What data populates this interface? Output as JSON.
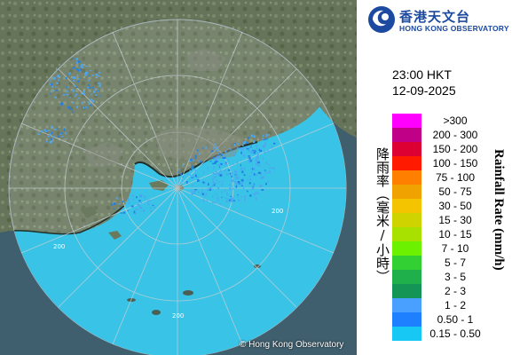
{
  "header": {
    "org_cn": "香港天文台",
    "org_en": "HONG KONG OBSERVATORY"
  },
  "timestamp": {
    "time": "23:00 HKT",
    "date": "12-09-2025"
  },
  "legend": {
    "title_cn": "降雨率（毫米/小時）",
    "title_en": "Rainfall Rate (mm/h)",
    "items": [
      {
        "label": ">300",
        "color": "#ff00ff"
      },
      {
        "label": "200 - 300",
        "color": "#c00087"
      },
      {
        "label": "150 - 200",
        "color": "#dd0033"
      },
      {
        "label": "100 - 150",
        "color": "#ff1a00"
      },
      {
        "label": "75 - 100",
        "color": "#ff7f00"
      },
      {
        "label": "50 - 75",
        "color": "#f0a300"
      },
      {
        "label": "30 - 50",
        "color": "#f5c400"
      },
      {
        "label": "15 - 30",
        "color": "#cfd300"
      },
      {
        "label": "10 - 15",
        "color": "#a8e000"
      },
      {
        "label": "7 - 10",
        "color": "#6cf200"
      },
      {
        "label": "5 - 7",
        "color": "#33d033"
      },
      {
        "label": "3 - 5",
        "color": "#1fb04c"
      },
      {
        "label": "2 - 3",
        "color": "#149555"
      },
      {
        "label": "1 - 2",
        "color": "#4aa0ff"
      },
      {
        "label": "0.50 - 1",
        "color": "#1e7fff"
      },
      {
        "label": "0.15 - 0.50",
        "color": "#17c8f5"
      }
    ]
  },
  "map": {
    "range_ring_labels": [
      "200",
      "200",
      "200"
    ],
    "copyright": "© Hong Kong Observatory",
    "colors": {
      "land": "#6b7a5e",
      "sea_coverage": "#39c3e6",
      "echo_light": "#4ea6f0",
      "echo_medium": "#1f7fe6"
    }
  }
}
